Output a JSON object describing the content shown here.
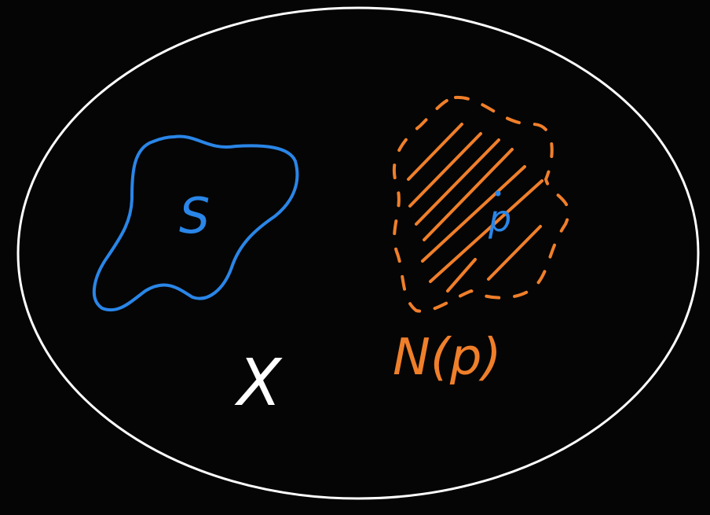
{
  "labels": {
    "set_s": "S",
    "point_p": "p",
    "space_x": "X",
    "neighborhood": "N(p)"
  },
  "colors": {
    "background": "#050505",
    "space": "#ffffff",
    "set": "#2a86e8",
    "neighborhood": "#f07f2a"
  }
}
